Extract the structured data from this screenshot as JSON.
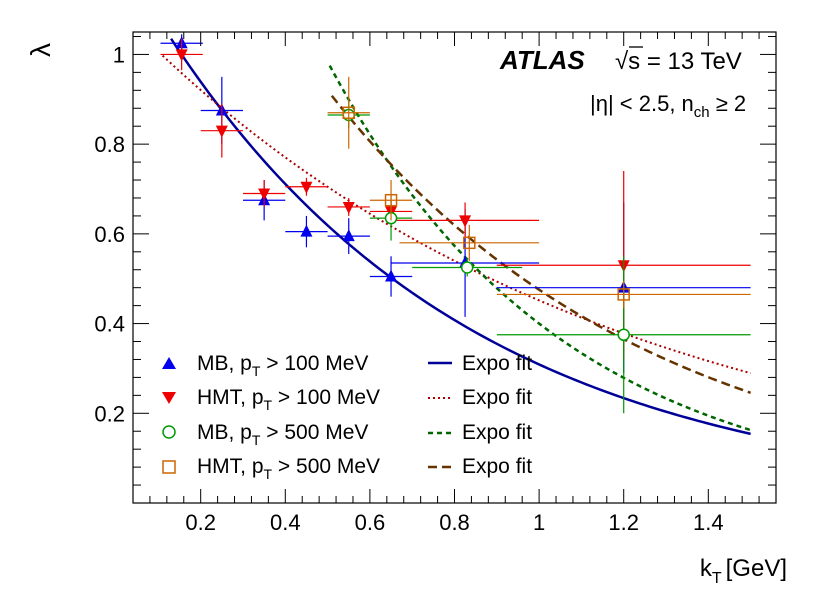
{
  "chart_data": {
    "type": "scatter",
    "title": "",
    "xlabel": "k",
    "xlabel_sub": "T",
    "xlabel_unit": "[GeV]",
    "ylabel": "λ",
    "xlim": [
      0.04,
      1.56
    ],
    "ylim": [
      0.0,
      1.05
    ],
    "xticks": [
      0.2,
      0.4,
      0.6,
      0.8,
      1.0,
      1.2,
      1.4
    ],
    "xtick_labels": [
      "0.2",
      "0.4",
      "0.6",
      "0.8",
      "1",
      "1.2",
      "1.4"
    ],
    "yticks": [
      0.2,
      0.4,
      0.6,
      0.8,
      1.0
    ],
    "ytick_labels": [
      "0.2",
      "0.4",
      "0.6",
      "0.8",
      "1"
    ],
    "annotations": {
      "experiment": "ATLAS",
      "energy_prefix": "√",
      "energy_symbol": "s",
      "energy_rest": " = 13 TeV",
      "selection_eta": "|η| < 2.5, n",
      "selection_sub": "ch",
      "selection_rest": " ≥ 2"
    },
    "legend": {
      "position": "bottom-left",
      "entries": [
        {
          "prefix": "MB, p",
          "sub": "T",
          "suffix": " > 100 MeV",
          "fit_label": "Expo fit"
        },
        {
          "prefix": "HMT, p",
          "sub": "T",
          "suffix": " > 100 MeV",
          "fit_label": "Expo fit"
        },
        {
          "prefix": "MB, p",
          "sub": "T",
          "suffix": " > 500 MeV",
          "fit_label": "Expo fit"
        },
        {
          "prefix": "HMT, p",
          "sub": "T",
          "suffix": " > 500 MeV",
          "fit_label": "Expo fit"
        }
      ]
    },
    "series": [
      {
        "name": "MB, pT > 100 MeV",
        "marker": "triangle-up",
        "color": "#0000ee",
        "points": [
          {
            "x": 0.155,
            "xerr": 0.05,
            "y": 1.025,
            "yerr": 0.02
          },
          {
            "x": 0.25,
            "xerr": 0.05,
            "y": 0.875,
            "yerr": 0.075
          },
          {
            "x": 0.35,
            "xerr": 0.05,
            "y": 0.675,
            "yerr": 0.045
          },
          {
            "x": 0.45,
            "xerr": 0.05,
            "y": 0.605,
            "yerr": 0.035
          },
          {
            "x": 0.55,
            "xerr": 0.05,
            "y": 0.595,
            "yerr": 0.04
          },
          {
            "x": 0.65,
            "xerr": 0.05,
            "y": 0.505,
            "yerr": 0.045
          },
          {
            "x": 0.825,
            "xerr": 0.175,
            "y": 0.535,
            "yerr": 0.12
          },
          {
            "x": 1.2,
            "xerr": 0.3,
            "y": 0.48,
            "yerr": 0.19
          }
        ],
        "fit": {
          "label": "Expo fit",
          "style": "solid",
          "color": "#000099",
          "x_range": [
            0.13,
            1.5
          ],
          "a": 1.24,
          "b": 1.39
        }
      },
      {
        "name": "HMT, pT > 100 MeV",
        "marker": "triangle-down",
        "color": "#ee0000",
        "points": [
          {
            "x": 0.155,
            "xerr": 0.05,
            "y": 1.0,
            "yerr": 0.035
          },
          {
            "x": 0.25,
            "xerr": 0.05,
            "y": 0.83,
            "yerr": 0.06
          },
          {
            "x": 0.35,
            "xerr": 0.05,
            "y": 0.69,
            "yerr": 0.03
          },
          {
            "x": 0.45,
            "xerr": 0.05,
            "y": 0.705,
            "yerr": 0.02
          },
          {
            "x": 0.55,
            "xerr": 0.05,
            "y": 0.66,
            "yerr": 0.02
          },
          {
            "x": 0.65,
            "xerr": 0.05,
            "y": 0.65,
            "yerr": 0.025
          },
          {
            "x": 0.825,
            "xerr": 0.175,
            "y": 0.63,
            "yerr": 0.04
          },
          {
            "x": 1.2,
            "xerr": 0.3,
            "y": 0.53,
            "yerr": 0.21
          }
        ],
        "fit": {
          "label": "Expo fit",
          "style": "dotted",
          "color": "#aa0000",
          "x_range": [
            0.11,
            1.5
          ],
          "a": 1.1,
          "b": 0.89
        }
      },
      {
        "name": "MB, pT > 500 MeV",
        "marker": "circle-open",
        "color": "#009900",
        "points": [
          {
            "x": 0.55,
            "xerr": 0.05,
            "y": 0.865,
            "yerr": 0.03
          },
          {
            "x": 0.65,
            "xerr": 0.05,
            "y": 0.635,
            "yerr": 0.05
          },
          {
            "x": 0.83,
            "xerr": 0.13,
            "y": 0.525,
            "yerr": 0.02
          },
          {
            "x": 1.2,
            "xerr": 0.3,
            "y": 0.375,
            "yerr": 0.175
          }
        ],
        "fit": {
          "label": "Expo fit",
          "style": "dashed",
          "color": "#006600",
          "x_range": [
            0.505,
            1.5
          ],
          "a": 2.42,
          "b": 1.8
        }
      },
      {
        "name": "HMT, pT > 500 MeV",
        "marker": "square-open",
        "color": "#cc6600",
        "points": [
          {
            "x": 0.55,
            "xerr": 0.05,
            "y": 0.87,
            "yerr": 0.08
          },
          {
            "x": 0.65,
            "xerr": 0.05,
            "y": 0.675,
            "yerr": 0.045
          },
          {
            "x": 0.835,
            "xerr": 0.165,
            "y": 0.58,
            "yerr": 0.04
          },
          {
            "x": 1.2,
            "xerr": 0.3,
            "y": 0.465,
            "yerr": 0.03
          }
        ],
        "fit": {
          "label": "Expo fit",
          "style": "longdash",
          "color": "#663300",
          "x_range": [
            0.51,
            1.5
          ],
          "a": 1.78,
          "b": 1.32
        }
      }
    ]
  }
}
